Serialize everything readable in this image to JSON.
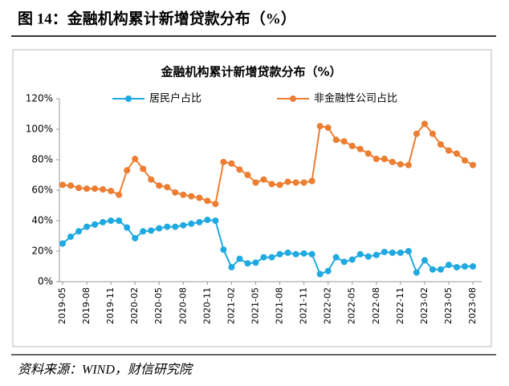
{
  "header": {
    "title": "图 14：金融机构累计新增贷款分布（%）"
  },
  "chart_data": {
    "type": "line",
    "title": "金融机构累计新增贷款分布（%）",
    "categories": [
      "2019-05",
      null,
      null,
      "2019-08",
      null,
      null,
      "2019-11",
      null,
      null,
      "2020-02",
      null,
      null,
      "2020-05",
      null,
      null,
      "2020-08",
      null,
      null,
      "2020-11",
      null,
      null,
      "2021-02",
      null,
      null,
      "2021-05",
      null,
      null,
      "2021-08",
      null,
      null,
      "2021-11",
      null,
      null,
      "2022-02",
      null,
      null,
      "2022-05",
      null,
      null,
      "2022-08",
      null,
      null,
      "2022-11",
      null,
      null,
      "2023-02",
      null,
      null,
      "2023-05",
      null,
      null,
      "2023-08"
    ],
    "series": [
      {
        "name": "居民户占比",
        "color": "#1fa9e1",
        "values": [
          25,
          29.5,
          33,
          36,
          37.5,
          39,
          40,
          40,
          35.5,
          28.5,
          33,
          33.5,
          35,
          36,
          36,
          37,
          38,
          39,
          40.5,
          40,
          21,
          9.5,
          15,
          12,
          12.5,
          16,
          16,
          18,
          19,
          18,
          18.5,
          18,
          5,
          7,
          16,
          13,
          14.5,
          18,
          16.5,
          17.5,
          19.5,
          19,
          19,
          20,
          6,
          14,
          8,
          8,
          11,
          9.5,
          10,
          10
        ]
      },
      {
        "name": "非金融性公司占比",
        "color": "#ed7d31",
        "values": [
          63.5,
          63,
          61.5,
          61,
          61,
          60.5,
          59.5,
          57,
          73,
          80.5,
          74,
          67,
          63,
          62,
          58.5,
          57,
          56,
          55,
          53,
          51,
          78.5,
          77.5,
          73.5,
          70,
          65,
          67,
          64,
          63.5,
          65.5,
          65,
          65,
          66,
          102,
          101,
          93,
          92,
          89,
          87,
          84,
          80.5,
          80.5,
          78.5,
          77,
          76.5,
          97,
          103.5,
          97,
          90,
          86,
          84,
          79.5,
          76.5
        ]
      }
    ],
    "ylim": [
      0,
      120
    ],
    "yticks": [
      {
        "value": 0,
        "label": "0%"
      },
      {
        "value": 20,
        "label": "20%"
      },
      {
        "value": 40,
        "label": "40%"
      },
      {
        "value": 60,
        "label": "60%"
      },
      {
        "value": 80,
        "label": "80%"
      },
      {
        "value": 100,
        "label": "100%"
      },
      {
        "value": 120,
        "label": "120%"
      }
    ],
    "grid": false,
    "legend": "top"
  },
  "source": "资料来源：WIND，财信研究院"
}
